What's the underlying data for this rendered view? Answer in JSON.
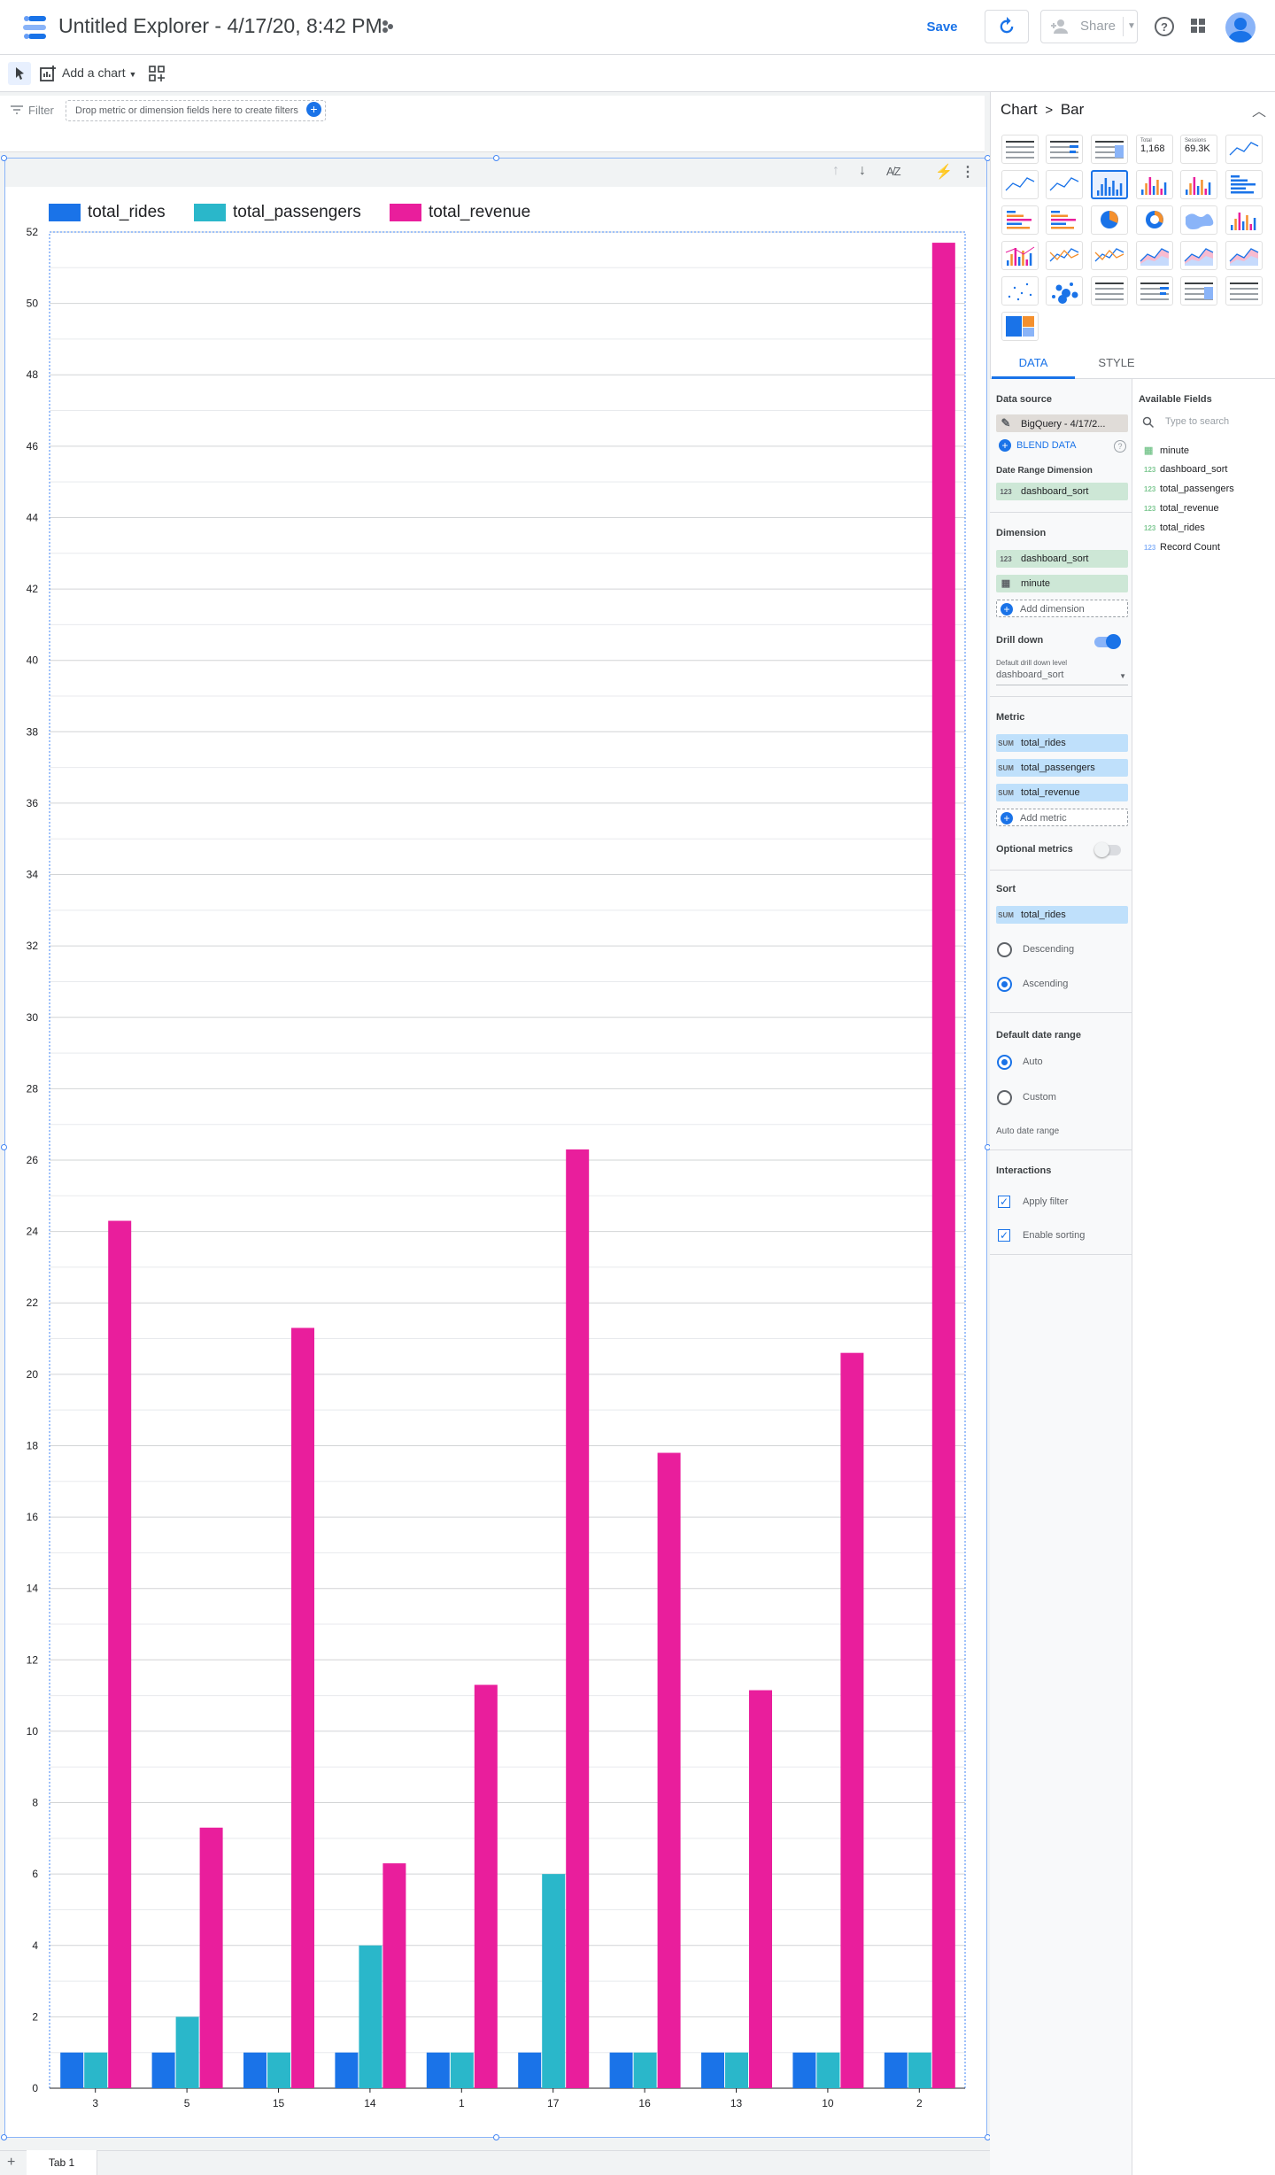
{
  "header": {
    "title": "Untitled Explorer - 4/17/20, 8:42 PM",
    "save_label": "Save",
    "share_label": "Share"
  },
  "toolbar": {
    "add_chart_label": "Add a chart"
  },
  "filter": {
    "label": "Filter",
    "placeholder": "Drop metric or dimension fields here to create filters"
  },
  "tabs": {
    "page_tab": "Tab 1"
  },
  "panel": {
    "breadcrumb_chart": "Chart",
    "breadcrumb_sep": ">",
    "breadcrumb_type": "Bar",
    "scorecard_total_label": "Total",
    "scorecard_total_value": "1,168",
    "scorecard_sessions_label": "Sessions",
    "scorecard_sessions_value": "69.3K",
    "tab_data": "DATA",
    "tab_style": "STYLE",
    "data_source_label": "Data source",
    "data_source_value": "BigQuery - 4/17/2...",
    "blend_data": "BLEND DATA",
    "date_range_dimension_label": "Date Range Dimension",
    "date_range_dimension_value": "dashboard_sort",
    "dimension_label": "Dimension",
    "dimensions": [
      {
        "tag": "123",
        "name": "dashboard_sort"
      },
      {
        "tag": "cal",
        "name": "minute"
      }
    ],
    "add_dimension": "Add dimension",
    "drill_down_label": "Drill down",
    "drill_down_on": true,
    "default_drill_label": "Default drill down level",
    "default_drill_value": "dashboard_sort",
    "metric_label": "Metric",
    "metrics": [
      {
        "agg": "SUM",
        "name": "total_rides"
      },
      {
        "agg": "SUM",
        "name": "total_passengers"
      },
      {
        "agg": "SUM",
        "name": "total_revenue"
      }
    ],
    "add_metric": "Add metric",
    "optional_metrics_label": "Optional metrics",
    "optional_metrics_on": false,
    "sort_label": "Sort",
    "sort_agg": "SUM",
    "sort_field": "total_rides",
    "sort_descending": "Descending",
    "sort_ascending": "Ascending",
    "sort_selected": "Ascending",
    "date_range_label": "Default date range",
    "date_auto": "Auto",
    "date_custom": "Custom",
    "date_selected": "Auto",
    "auto_date_range": "Auto date range",
    "interactions_label": "Interactions",
    "apply_filter": "Apply filter",
    "enable_sorting": "Enable sorting",
    "apply_filter_checked": true,
    "enable_sorting_checked": true,
    "available_fields_label": "Available Fields",
    "search_placeholder": "Type to search",
    "fields": [
      {
        "type": "date",
        "name": "minute"
      },
      {
        "type": "123",
        "name": "dashboard_sort"
      },
      {
        "type": "123",
        "name": "total_passengers"
      },
      {
        "type": "123",
        "name": "total_revenue"
      },
      {
        "type": "123",
        "name": "total_rides"
      },
      {
        "type": "123-blue",
        "name": "Record Count"
      }
    ]
  },
  "chart_data": {
    "type": "bar",
    "categories": [
      "3",
      "5",
      "15",
      "14",
      "1",
      "17",
      "16",
      "13",
      "10",
      "2"
    ],
    "series": [
      {
        "name": "total_rides",
        "color": "#1a73e8",
        "values": [
          1,
          1,
          1,
          1,
          1,
          1,
          1,
          1,
          1,
          1
        ]
      },
      {
        "name": "total_passengers",
        "color": "#2ab7ca",
        "values": [
          1,
          2,
          1,
          4,
          1,
          6,
          1,
          1,
          1,
          1
        ]
      },
      {
        "name": "total_revenue",
        "color": "#e91e9c",
        "values": [
          24.3,
          7.3,
          21.3,
          6.3,
          11.3,
          26.3,
          17.8,
          11.15,
          20.6,
          51.7
        ]
      }
    ],
    "yticks": [
      0,
      2,
      4,
      6,
      8,
      10,
      12,
      14,
      16,
      18,
      20,
      22,
      24,
      26,
      28,
      30,
      32,
      34,
      36,
      38,
      40,
      42,
      44,
      46,
      48,
      50,
      52
    ],
    "ylim": [
      0,
      52
    ],
    "grid": true,
    "legend": "top-left"
  }
}
